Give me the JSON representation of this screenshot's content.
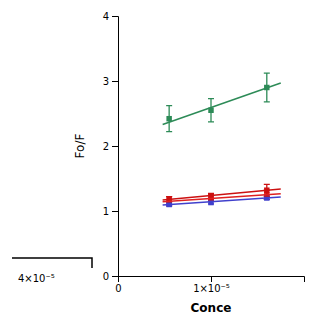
{
  "chart_data": {
    "type": "scatter",
    "xlabel": "Conce",
    "ylabel": "Fo/F",
    "xlim": [
      0,
      2e-05
    ],
    "ylim": [
      0,
      4
    ],
    "xticks": [
      0,
      {
        "value": 1e-05,
        "label": "1×10⁻⁵"
      }
    ],
    "yticks": [
      0,
      1,
      2,
      3,
      4
    ],
    "grid": false,
    "annotations": [
      "4×10⁻⁵"
    ],
    "series": [
      {
        "type": "scatter",
        "marker": "square",
        "color": "#2d8b57",
        "x": [
          5.5e-06,
          1e-05,
          1.6e-05
        ],
        "values": [
          2.42,
          2.55,
          2.9
        ],
        "errors": [
          0.2,
          0.18,
          0.22
        ]
      },
      {
        "type": "line",
        "line_style": "solid",
        "color": "#2d8b57",
        "x": [
          4.8e-06,
          1.75e-05
        ],
        "values": [
          2.33,
          2.97
        ]
      },
      {
        "type": "scatter",
        "marker": "square",
        "color": "#e02020",
        "x": [
          5.5e-06,
          1e-05,
          1.6e-05
        ],
        "values": [
          1.15,
          1.2,
          1.25
        ],
        "errors": [
          0.07,
          0.05,
          0.07
        ]
      },
      {
        "type": "scatter",
        "marker": "square",
        "color": "#4040cc",
        "x": [
          5.5e-06,
          1e-05,
          1.6e-05
        ],
        "values": [
          1.1,
          1.13,
          1.2
        ],
        "errors": [
          0.02,
          0.02,
          0.02
        ]
      },
      {
        "type": "scatter",
        "marker": "square",
        "color": "#cc1111",
        "x": [
          5.5e-06,
          1e-05,
          1.6e-05
        ],
        "values": [
          1.18,
          1.22,
          1.32
        ],
        "errors": [
          0.04,
          0.05,
          0.09
        ]
      },
      {
        "type": "line",
        "line_style": "solid",
        "color": "#e02020",
        "x": [
          4.8e-06,
          1.75e-05
        ],
        "values": [
          1.143333,
          1.264286
        ]
      },
      {
        "type": "line",
        "line_style": "solid",
        "color": "#4040cc",
        "x": [
          4.8e-06,
          1.75e-05
        ],
        "values": [
          1.093333,
          1.214286
        ]
      },
      {
        "type": "line",
        "line_style": "solid",
        "color": "#cc1111",
        "x": [
          4.8e-06,
          1.75e-05
        ],
        "values": [
          1.170667,
          1.34
        ]
      }
    ]
  }
}
